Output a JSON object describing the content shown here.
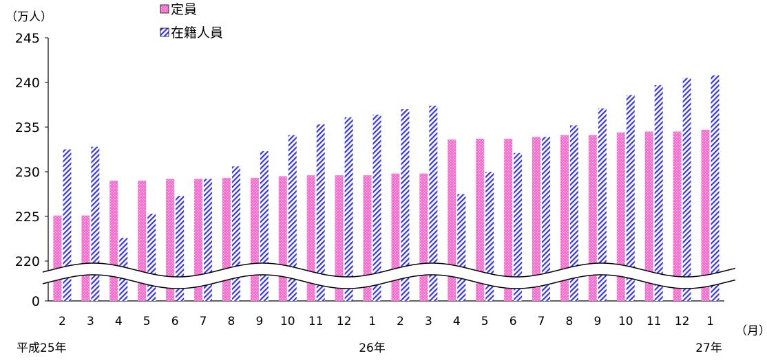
{
  "chart_data": {
    "type": "bar",
    "y_unit": "（万人）",
    "x_unit": "（月）",
    "ylim": [
      220,
      245
    ],
    "y_break": {
      "lower_tick": 0,
      "upper_start": 220
    },
    "yticks": [
      "245",
      "240",
      "235",
      "230",
      "225",
      "220",
      "0"
    ],
    "categories": [
      "2",
      "3",
      "4",
      "5",
      "6",
      "7",
      "8",
      "9",
      "10",
      "11",
      "12",
      "1",
      "2",
      "3",
      "4",
      "5",
      "6",
      "7",
      "8",
      "9",
      "10",
      "11",
      "12",
      "1"
    ],
    "year_labels": [
      {
        "label": "平成25年",
        "category_index": 0
      },
      {
        "label": "26年",
        "category_index": 11
      },
      {
        "label": "27年",
        "category_index": 23
      }
    ],
    "series": [
      {
        "name": "定員",
        "color": "#ff66cc",
        "pattern": "dotted",
        "values": [
          225.1,
          225.1,
          229.0,
          229.0,
          229.2,
          229.2,
          229.3,
          229.3,
          229.5,
          229.6,
          229.6,
          229.6,
          229.8,
          229.8,
          233.6,
          233.7,
          233.7,
          233.9,
          234.1,
          234.1,
          234.4,
          234.5,
          234.5,
          234.7
        ]
      },
      {
        "name": "在籍人員",
        "color": "#3333ff",
        "pattern": "diagonal-hatch",
        "values": [
          232.5,
          232.8,
          222.6,
          225.3,
          227.3,
          229.2,
          230.6,
          232.3,
          234.1,
          235.3,
          236.1,
          236.4,
          237.0,
          237.4,
          227.5,
          230.0,
          232.1,
          233.9,
          235.2,
          237.1,
          238.6,
          239.7,
          240.5,
          240.8
        ]
      }
    ],
    "grid": false,
    "legend": "top-left"
  }
}
